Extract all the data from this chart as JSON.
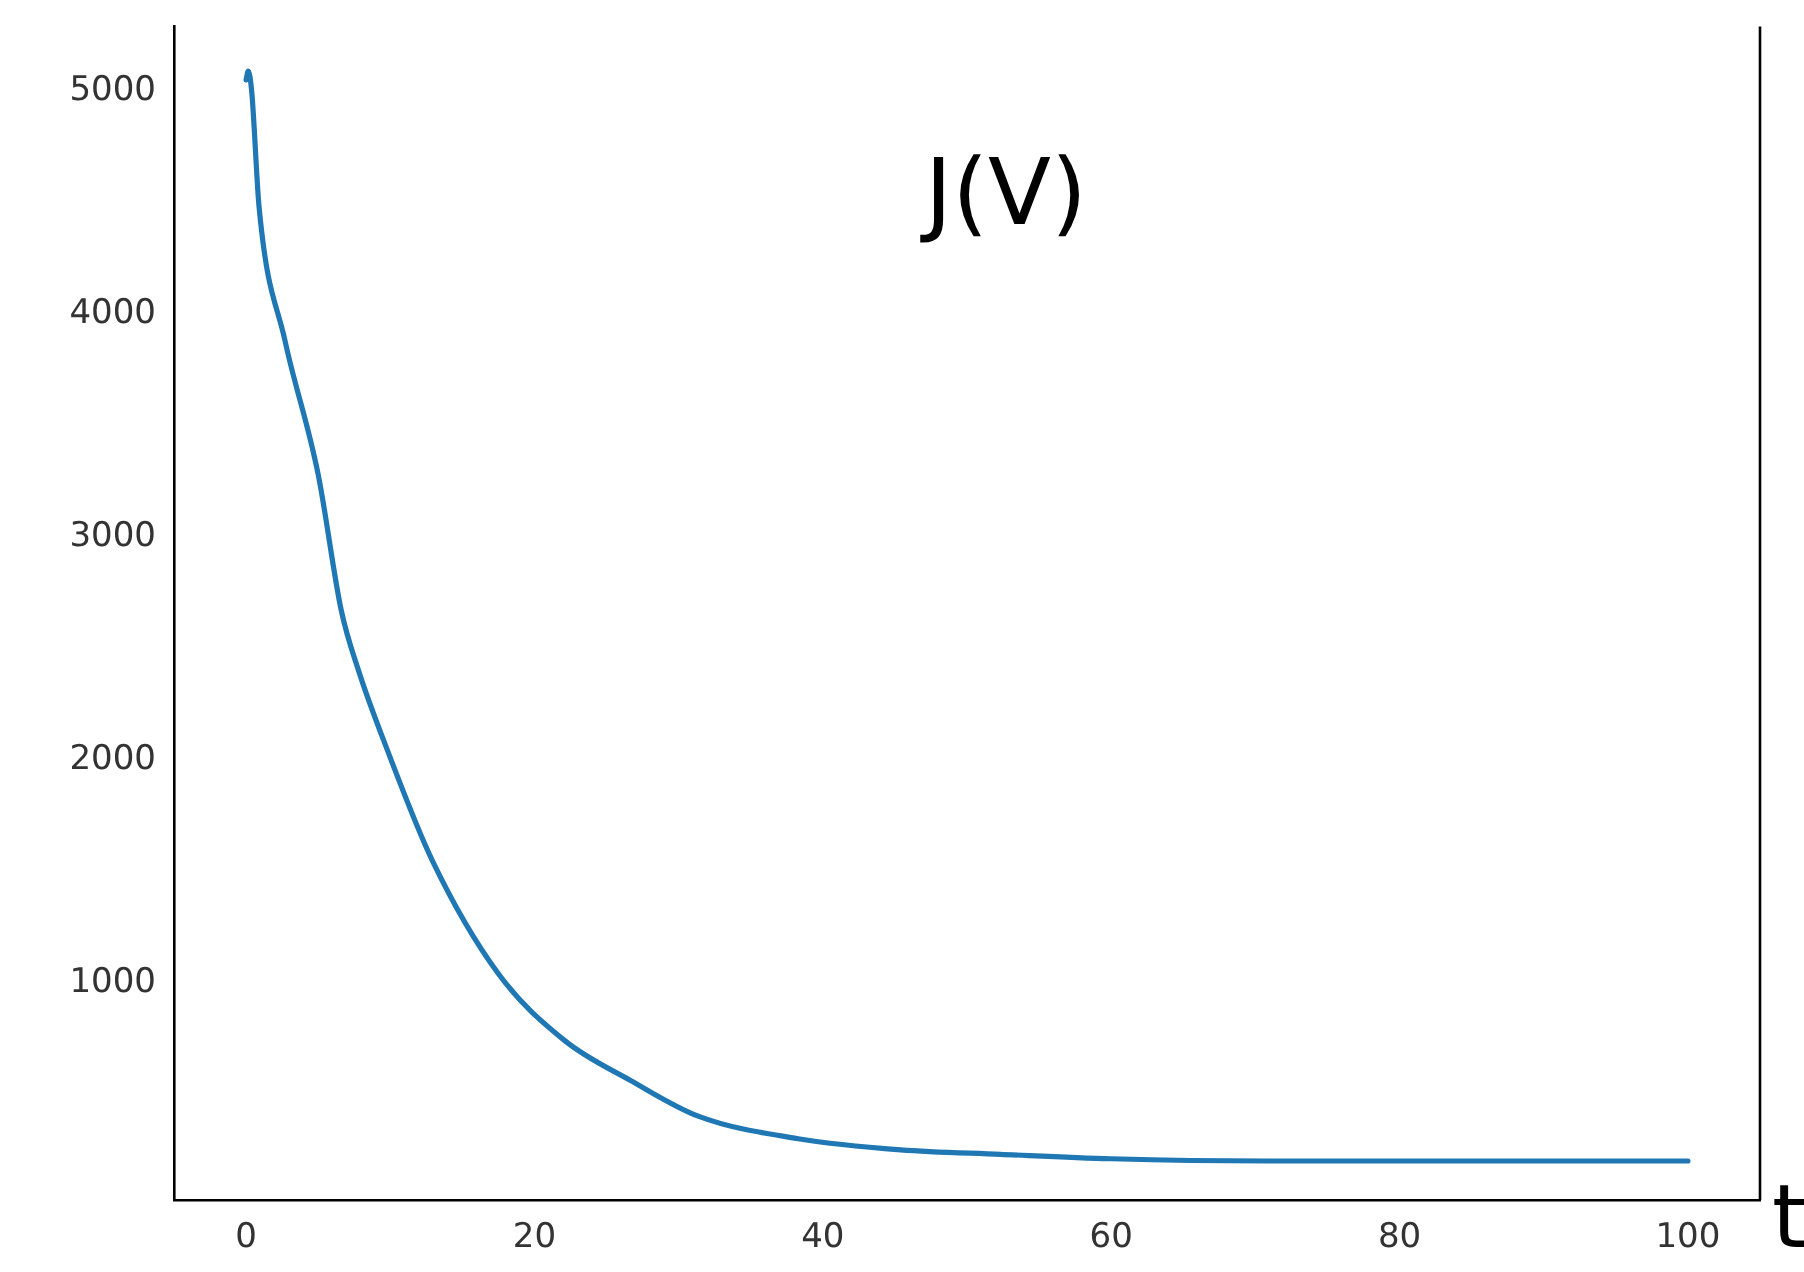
{
  "chart_data": {
    "type": "line",
    "title": "J(V)",
    "xlabel": "t",
    "x": [
      0,
      0.15,
      0.4,
      0.9,
      2.7,
      5.0,
      6.6,
      7.8,
      9.7,
      12.9,
      17.5,
      22.1,
      26.7,
      31.4,
      38.3,
      45.4,
      52.3,
      60,
      70.7,
      80,
      100
    ],
    "series": [
      {
        "color": "#1f77b4",
        "values": [
          5050,
          5090,
          4990,
          4480,
          3880,
          3280,
          2670,
          2400,
          2060,
          1550,
          1040,
          740,
          560,
          400,
          300,
          250,
          230,
          210,
          200,
          200,
          200
        ]
      }
    ],
    "xlim": [
      -5,
      105
    ],
    "xticks": [
      0,
      20,
      40,
      60,
      80,
      100
    ],
    "ylim": [
      25,
      5290
    ],
    "yticks": [
      1000,
      2000,
      3000,
      4000,
      5000
    ]
  }
}
